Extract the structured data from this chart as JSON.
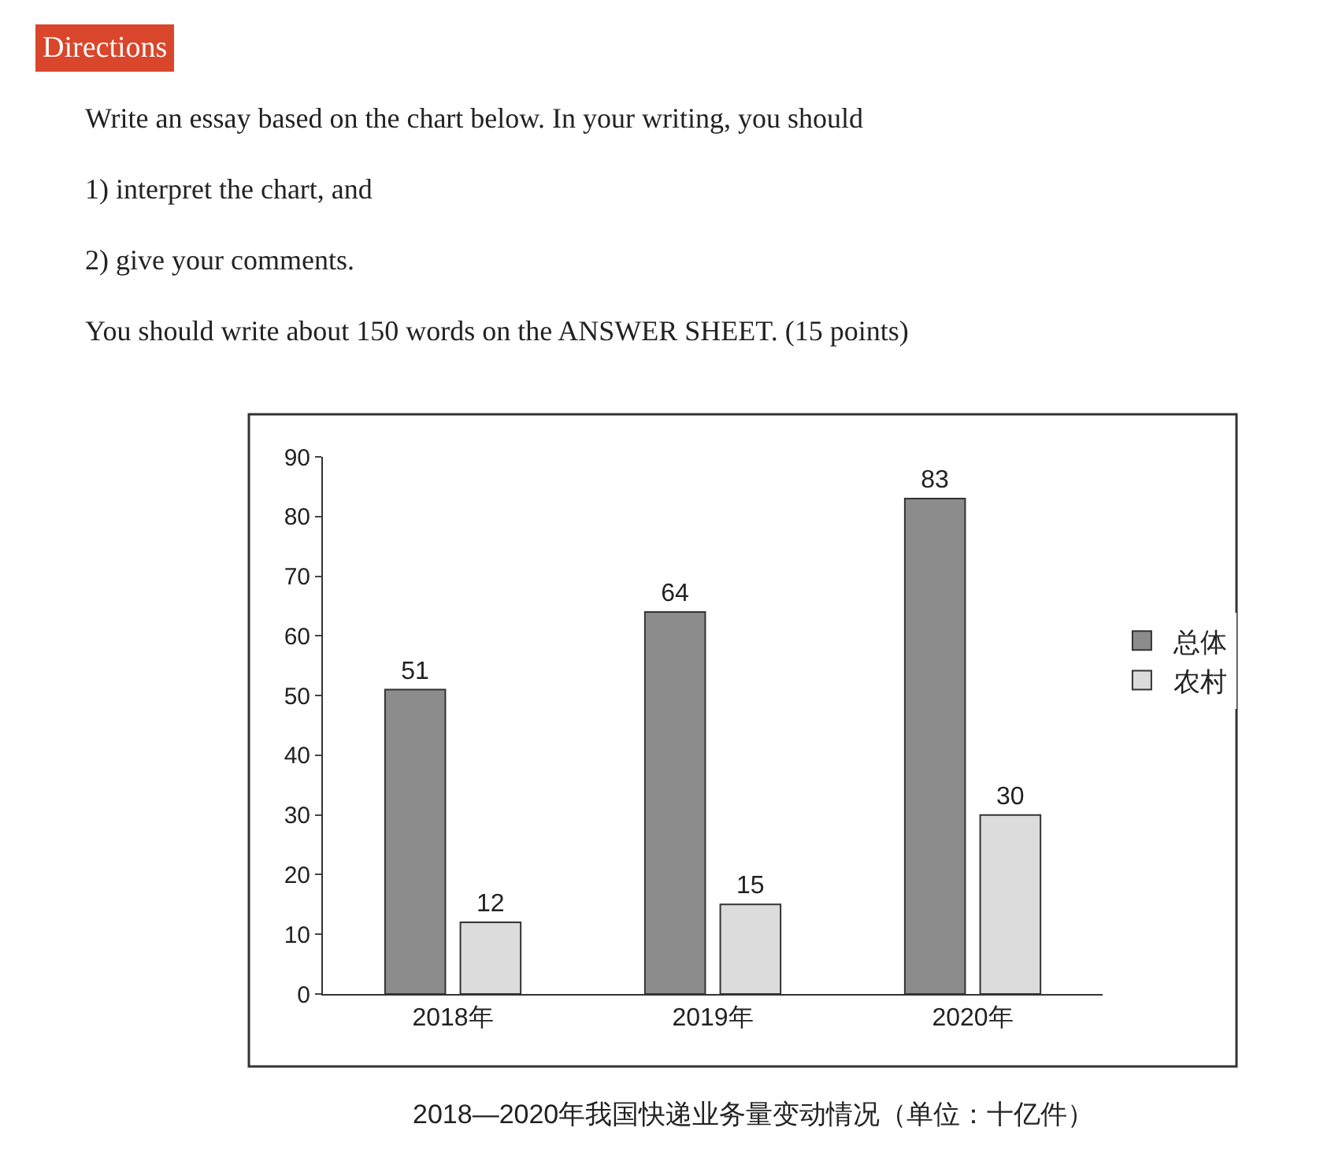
{
  "chart_data": {
    "type": "bar",
    "title": "2018—2020年我国快递业务量变动情况（单位：十亿件）",
    "annotations": [
      "Directions",
      "Write an essay based on the chart below. In your writing, you should",
      "1) interpret the chart, and",
      "2) give your comments.",
      "You should write about 150 words on the ANSWER SHEET. (15 points)"
    ],
    "categories": [
      "2018年",
      "2019年",
      "2020年"
    ],
    "series": [
      {
        "name": "总体",
        "color": "#8c8c8c",
        "values": [
          51,
          64,
          83
        ]
      },
      {
        "name": "农村",
        "color": "#dcdcdc",
        "values": [
          12,
          15,
          30
        ]
      }
    ],
    "ylim": [
      0,
      90
    ],
    "yticks": [
      0,
      10,
      20,
      30,
      40,
      50,
      60,
      70,
      80,
      90
    ],
    "data_labels": true,
    "legend": "right"
  }
}
